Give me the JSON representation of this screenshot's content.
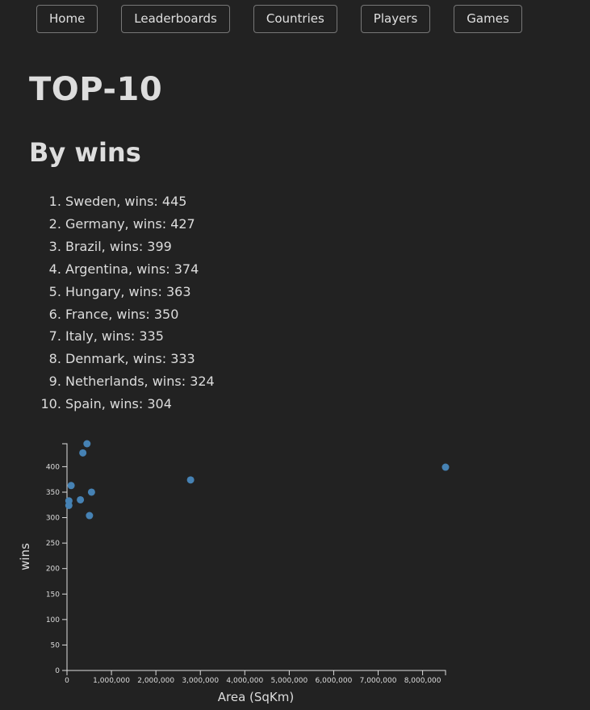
{
  "nav": {
    "home": "Home",
    "leaderboards": "Leaderboards",
    "countries": "Countries",
    "players": "Players",
    "games": "Games"
  },
  "page": {
    "title": "TOP-10",
    "subtitle": "By wins"
  },
  "ranking": [
    {
      "text": "Sweden, wins: 445"
    },
    {
      "text": "Germany, wins: 427"
    },
    {
      "text": "Brazil, wins: 399"
    },
    {
      "text": "Argentina, wins: 374"
    },
    {
      "text": "Hungary, wins: 363"
    },
    {
      "text": "France, wins: 350"
    },
    {
      "text": "Italy, wins: 335"
    },
    {
      "text": "Denmark, wins: 333"
    },
    {
      "text": "Netherlands, wins: 324"
    },
    {
      "text": "Spain, wins: 304"
    }
  ],
  "colors": {
    "point": "#4682b4",
    "axis": "#dddddd",
    "background": "#222222"
  },
  "chart_data": {
    "type": "scatter",
    "xlabel": "Area (SqKm)",
    "ylabel": "wins",
    "xlim": [
      0,
      8515767
    ],
    "ylim": [
      0,
      445
    ],
    "xticks": [
      0,
      1000000,
      2000000,
      3000000,
      4000000,
      5000000,
      6000000,
      7000000,
      8000000
    ],
    "xtick_labels": [
      "0",
      "1,000,000",
      "2,000,000",
      "3,000,000",
      "4,000,000",
      "5,000,000",
      "6,000,000",
      "7,000,000",
      "8,000,000"
    ],
    "yticks": [
      0,
      50,
      100,
      150,
      200,
      250,
      300,
      350,
      400
    ],
    "ytick_labels": [
      "0",
      "50",
      "100",
      "150",
      "200",
      "250",
      "300",
      "350",
      "400"
    ],
    "grid": false,
    "points": [
      {
        "x": 450295,
        "y": 445
      },
      {
        "x": 357022,
        "y": 427
      },
      {
        "x": 8515767,
        "y": 399
      },
      {
        "x": 2780400,
        "y": 374
      },
      {
        "x": 93028,
        "y": 363
      },
      {
        "x": 551695,
        "y": 350
      },
      {
        "x": 301340,
        "y": 335
      },
      {
        "x": 42933,
        "y": 333
      },
      {
        "x": 41850,
        "y": 324
      },
      {
        "x": 505990,
        "y": 304
      }
    ]
  }
}
